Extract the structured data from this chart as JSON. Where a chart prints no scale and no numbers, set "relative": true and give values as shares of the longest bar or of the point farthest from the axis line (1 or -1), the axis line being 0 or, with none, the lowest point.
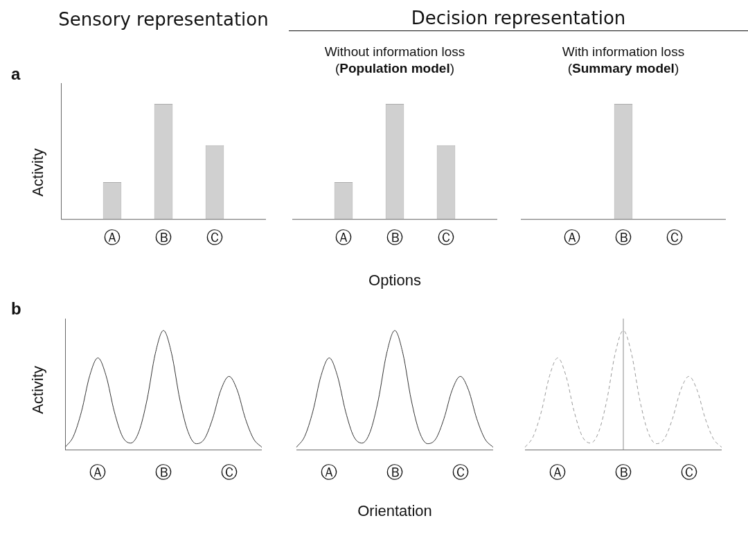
{
  "chart_data": [
    {
      "type": "bar",
      "title": "Sensory representation",
      "ylabel": "Activity",
      "relative": true,
      "categories": [
        null,
        "Ⓐ",
        "Ⓑ",
        "Ⓒ",
        null
      ],
      "values": [
        null,
        0.32,
        1,
        0.64,
        null
      ],
      "color": "#d0d0d0",
      "annotations": [
        "a"
      ]
    },
    {
      "type": "bar",
      "title": "Decision representation",
      "subtitle": "Without information loss\n(Population model)",
      "xlabel": "Options",
      "relative": true,
      "categories": [
        null,
        "Ⓐ",
        "Ⓑ",
        "Ⓒ",
        null
      ],
      "values": [
        null,
        0.32,
        1,
        0.64,
        null
      ],
      "color": "#d0d0d0"
    },
    {
      "type": "bar",
      "subtitle": "With information loss\n(Summary model)",
      "relative": true,
      "categories": [
        null,
        "Ⓐ",
        "Ⓑ",
        "Ⓒ",
        null
      ],
      "values": [
        null,
        null,
        1,
        null,
        null
      ],
      "color": "#d0d0d0"
    },
    {
      "type": "line",
      "ylabel": "Activity",
      "relative": true,
      "annotations": [
        "b"
      ],
      "categories": [
        null,
        null,
        null,
        null,
        "Ⓐ",
        null,
        null,
        null,
        null,
        null,
        null,
        null,
        "Ⓑ",
        null,
        null,
        null,
        null,
        null,
        null,
        null,
        "Ⓒ",
        null,
        null,
        null,
        null
      ],
      "series": [
        {
          "color": "#333333",
          "values": [
            0.02,
            0.11,
            0.32,
            0.62,
            0.77,
            0.62,
            0.32,
            0.11,
            0.055,
            0.15,
            0.42,
            0.805,
            1,
            0.805,
            0.42,
            0.15,
            0.05,
            0.09,
            0.26,
            0.5,
            0.615,
            0.5,
            0.26,
            0.09,
            0.02
          ]
        }
      ]
    },
    {
      "type": "line",
      "xlabel": "Orientation",
      "relative": true,
      "categories": [
        null,
        null,
        null,
        null,
        "Ⓐ",
        null,
        null,
        null,
        null,
        null,
        null,
        null,
        "Ⓑ",
        null,
        null,
        null,
        null,
        null,
        null,
        null,
        "Ⓒ",
        null,
        null,
        null,
        null
      ],
      "series": [
        {
          "color": "#333333",
          "values": [
            0.02,
            0.11,
            0.32,
            0.62,
            0.77,
            0.62,
            0.32,
            0.11,
            0.055,
            0.15,
            0.42,
            0.805,
            1,
            0.805,
            0.42,
            0.15,
            0.05,
            0.09,
            0.26,
            0.5,
            0.615,
            0.5,
            0.26,
            0.09,
            0.02
          ]
        }
      ]
    },
    {
      "type": "line",
      "relative": true,
      "line_style": "dashed",
      "ref_lines": [
        {
          "axis": "x",
          "value": "Ⓑ",
          "color": "#888888"
        }
      ],
      "categories": [
        null,
        null,
        null,
        null,
        "Ⓐ",
        null,
        null,
        null,
        null,
        null,
        null,
        null,
        "Ⓑ",
        null,
        null,
        null,
        null,
        null,
        null,
        null,
        "Ⓒ",
        null,
        null,
        null,
        null
      ],
      "series": [
        {
          "color": "#999999",
          "values": [
            0.02,
            0.11,
            0.32,
            0.62,
            0.77,
            0.62,
            0.32,
            0.11,
            0.055,
            0.15,
            0.42,
            0.805,
            1,
            0.805,
            0.42,
            0.15,
            0.05,
            0.09,
            0.26,
            0.5,
            0.615,
            0.5,
            0.26,
            0.09,
            0.02
          ]
        }
      ]
    }
  ]
}
